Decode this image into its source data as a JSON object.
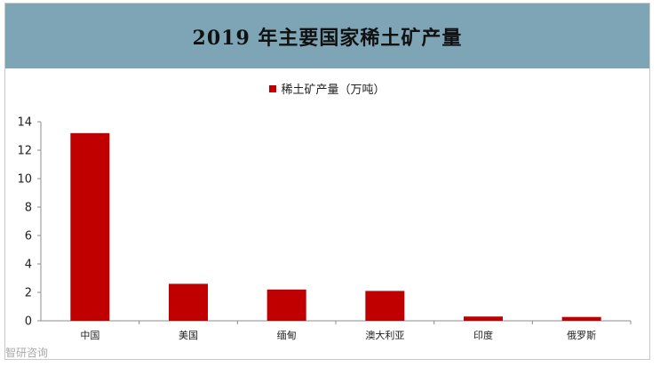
{
  "chart_data": {
    "type": "bar",
    "title": "2019 年主要国家稀土矿产量",
    "categories": [
      "中国",
      "美国",
      "缅甸",
      "澳大利亚",
      "印度",
      "俄罗斯"
    ],
    "series": [
      {
        "name": "稀土矿产量（万吨）",
        "values": [
          13.2,
          2.6,
          2.2,
          2.1,
          0.3,
          0.27
        ],
        "color": "#c00000"
      }
    ],
    "yticks": [
      "0",
      "2",
      "4",
      "6",
      "8",
      "10",
      "12",
      "14"
    ],
    "ylim": [
      0,
      14
    ],
    "grid": false,
    "legend_position": "top-center"
  },
  "watermark": "智研咨询",
  "colors": {
    "title_bg": "#7ea5b5",
    "bar": "#c00000"
  }
}
